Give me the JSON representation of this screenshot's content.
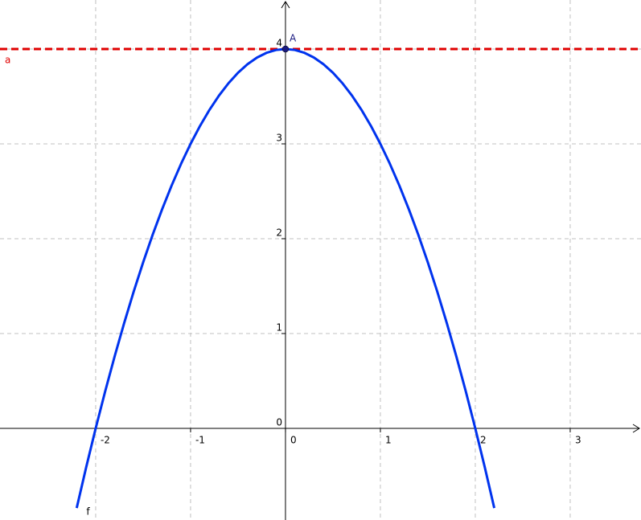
{
  "chart_data": {
    "type": "line",
    "xlim": [
      -3.008,
      3.746
    ],
    "ylim": [
      -0.966,
      4.517
    ],
    "xticks": [
      -2,
      -1,
      0,
      1,
      2,
      3
    ],
    "yticks": [
      0,
      1,
      2,
      3,
      4
    ],
    "grid": true,
    "series": [
      {
        "name": "f",
        "color": "#0033ee",
        "x": [
          -2.2,
          -2.1,
          -2,
          -1.9,
          -1.8,
          -1.7,
          -1.6,
          -1.5,
          -1.4,
          -1.3,
          -1.2,
          -1.1,
          -1,
          -0.9,
          -0.8,
          -0.7,
          -0.6,
          -0.5,
          -0.4,
          -0.3,
          -0.2,
          -0.1,
          0,
          0.1,
          0.2,
          0.3,
          0.4,
          0.5,
          0.6,
          0.7,
          0.8,
          0.9,
          1,
          1.1,
          1.2,
          1.3,
          1.4,
          1.5,
          1.6,
          1.7,
          1.8,
          1.9,
          2,
          2.1,
          2.2
        ],
        "values": [
          -0.84,
          -0.41,
          0,
          0.39,
          0.76,
          1.11,
          1.44,
          1.75,
          2.04,
          2.31,
          2.56,
          2.79,
          3,
          3.19,
          3.36,
          3.51,
          3.64,
          3.75,
          3.84,
          3.91,
          3.96,
          3.99,
          4,
          3.99,
          3.96,
          3.91,
          3.84,
          3.75,
          3.64,
          3.51,
          3.36,
          3.19,
          3,
          2.79,
          2.56,
          2.31,
          2.04,
          1.75,
          1.44,
          1.11,
          0.76,
          0.39,
          0,
          -0.41,
          -0.84
        ]
      }
    ],
    "lines": [
      {
        "name": "a",
        "value": 4,
        "color": "#e00000"
      }
    ],
    "points": [
      {
        "name": "A",
        "x": 0,
        "y": 4,
        "color": "#1a1a80"
      }
    ]
  }
}
